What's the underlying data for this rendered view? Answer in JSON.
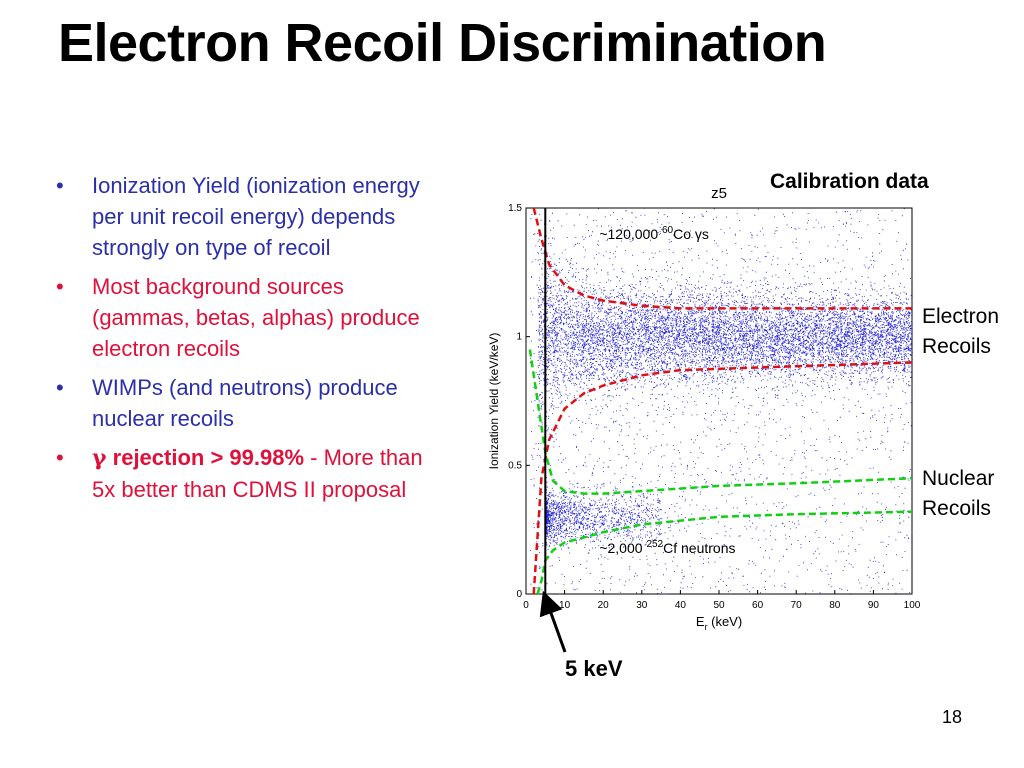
{
  "slide": {
    "title": "Electron Recoil Discrimination",
    "page_number": "18",
    "calibration_label": "Calibration data",
    "electron_label_1": "Electron",
    "electron_label_2": "Recoils",
    "nuclear_label_1": "Nuclear",
    "nuclear_label_2": "Recoils",
    "kev_label": "5 keV"
  },
  "bullets": [
    {
      "text": "Ionization Yield (ionization energy per unit recoil energy) depends strongly on type of recoil",
      "color": "#2b2fa8"
    },
    {
      "text": "Most background sources (gammas, betas, alphas) produce electron recoils",
      "color": "#e0103a"
    },
    {
      "text": "WIMPs (and neutrons) produce nuclear recoils",
      "color": "#2b2fa8"
    },
    {
      "prefix": "γ",
      "bold": " rejection > 99.98%",
      "rest": " - More than 5x better than CDMS II proposal",
      "color": "#e0103a"
    }
  ],
  "chart_data": {
    "type": "scatter",
    "title": "z5",
    "xlabel": "E",
    "xlabel_sub": "r",
    "xlabel_unit": "(keV)",
    "ylabel": "Ionization Yield (keV/keV)",
    "xlim": [
      0,
      100
    ],
    "ylim": [
      0,
      1.5
    ],
    "xticks": [
      "0",
      "10",
      "20",
      "30",
      "40",
      "50",
      "60",
      "70",
      "80",
      "90",
      "100"
    ],
    "yticks": [
      "0",
      "0.5",
      "1",
      "1.5"
    ],
    "threshold_keV": 5,
    "annotation_top": {
      "prefix": "~120,000 ",
      "sup": "60",
      "rest": "Co γs"
    },
    "annotation_bottom": {
      "prefix": "~2,000 ",
      "sup": "252",
      "rest": "Cf neutrons"
    },
    "series": [
      {
        "name": "electron recoil band",
        "center_yield": 1.0,
        "color": "#2020d0"
      },
      {
        "name": "nuclear recoil band",
        "center_yield": 0.3,
        "color": "#2020d0"
      }
    ],
    "bands": {
      "electron_upper": {
        "x": [
          2,
          4,
          6,
          10,
          15,
          20,
          30,
          40,
          60,
          80,
          100
        ],
        "y": [
          1.5,
          1.38,
          1.28,
          1.2,
          1.16,
          1.14,
          1.12,
          1.11,
          1.11,
          1.11,
          1.11
        ],
        "color": "#e01010"
      },
      "electron_lower": {
        "x": [
          2,
          4,
          6,
          10,
          15,
          20,
          30,
          40,
          60,
          80,
          100
        ],
        "y": [
          0.0,
          0.45,
          0.6,
          0.72,
          0.78,
          0.81,
          0.85,
          0.87,
          0.88,
          0.89,
          0.9
        ],
        "color": "#e01010"
      },
      "nuclear_upper": {
        "x": [
          1,
          3,
          5,
          7,
          10,
          15,
          20,
          30,
          50,
          70,
          100
        ],
        "y": [
          0.95,
          0.75,
          0.55,
          0.44,
          0.4,
          0.39,
          0.39,
          0.4,
          0.42,
          0.43,
          0.45
        ],
        "color": "#10d010"
      },
      "nuclear_lower": {
        "x": [
          3,
          4,
          5,
          7,
          10,
          15,
          20,
          30,
          50,
          70,
          100
        ],
        "y": [
          0.0,
          0.05,
          0.13,
          0.17,
          0.2,
          0.22,
          0.24,
          0.27,
          0.3,
          0.31,
          0.32
        ],
        "color": "#10d010"
      }
    }
  }
}
